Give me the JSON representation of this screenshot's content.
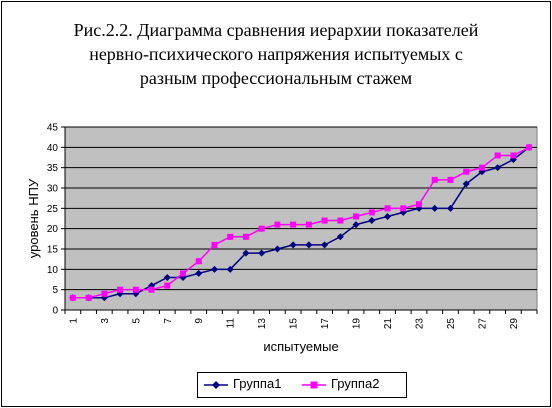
{
  "title_lines": [
    "Рис.2.2. Диаграмма сравнения иерархии показателей",
    "нервно-психического напряжения испытуемых с",
    "разным профессиональным стажем"
  ],
  "chart_data": {
    "type": "line",
    "title": "Рис.2.2. Диаграмма сравнения иерархии показателей нервно-психического напряжения испытуемых с разным профессиональным стажем",
    "xlabel": "испытуемые",
    "ylabel": "уровень НПУ",
    "x": [
      1,
      2,
      3,
      4,
      5,
      6,
      7,
      8,
      9,
      10,
      11,
      12,
      13,
      14,
      15,
      16,
      17,
      18,
      19,
      20,
      21,
      22,
      23,
      24,
      25,
      26,
      27,
      28,
      29,
      30
    ],
    "x_tick_labels": [
      "1",
      "3",
      "5",
      "7",
      "9",
      "11",
      "13",
      "15",
      "17",
      "19",
      "21",
      "23",
      "25",
      "27",
      "29"
    ],
    "ylim": [
      0,
      45
    ],
    "y_ticks": [
      0,
      5,
      10,
      15,
      20,
      25,
      30,
      35,
      40,
      45
    ],
    "grid": true,
    "plot_background": "#c0c0c0",
    "legend_position": "bottom",
    "series": [
      {
        "name": "Группа1",
        "color": "#000080",
        "marker": "diamond",
        "values": [
          3,
          3,
          3,
          4,
          4,
          6,
          8,
          8,
          9,
          10,
          10,
          14,
          14,
          15,
          16,
          16,
          16,
          18,
          21,
          22,
          23,
          24,
          25,
          25,
          25,
          31,
          34,
          35,
          37,
          40
        ]
      },
      {
        "name": "Группа2",
        "color": "#ff00ff",
        "marker": "square",
        "values": [
          3,
          3,
          4,
          5,
          5,
          5,
          6,
          9,
          12,
          16,
          18,
          18,
          20,
          21,
          21,
          21,
          22,
          22,
          23,
          24,
          25,
          25,
          26,
          32,
          32,
          34,
          35,
          38,
          38,
          40
        ]
      }
    ]
  }
}
